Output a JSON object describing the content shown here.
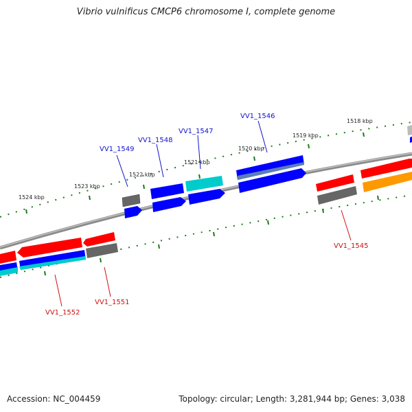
{
  "title": "Vibrio vulnificus CMCP6 chromosome I, complete genome",
  "accession_label": "Accession: NC_004459",
  "summary_label": "Topology: circular; Length: 3,281,944 bp; Genes: 3,038",
  "colors": {
    "backbone": "#8a8a8a",
    "tick": "#1a7a1a",
    "forward_gene_label": "#1010cc",
    "reverse_gene_label": "#cc1010",
    "red": "#ff0000",
    "blue": "#0000ff",
    "cyan": "#00cccc",
    "gray": "#666666",
    "orange": "#ff9900",
    "steel": "#5b7fb8"
  },
  "kbp_labels": [
    "1518 kbp",
    "1519 kbp",
    "1520 kbp",
    "1521 kbp",
    "1522 kbp",
    "1523 kbp",
    "1524 kbp"
  ],
  "gene_labels": {
    "forward": [
      "VV1_1549",
      "VV1_1548",
      "VV1_1547",
      "VV1_1546"
    ],
    "reverse": [
      "VV1_1545",
      "VV1_1551",
      "VV1_1552"
    ]
  }
}
